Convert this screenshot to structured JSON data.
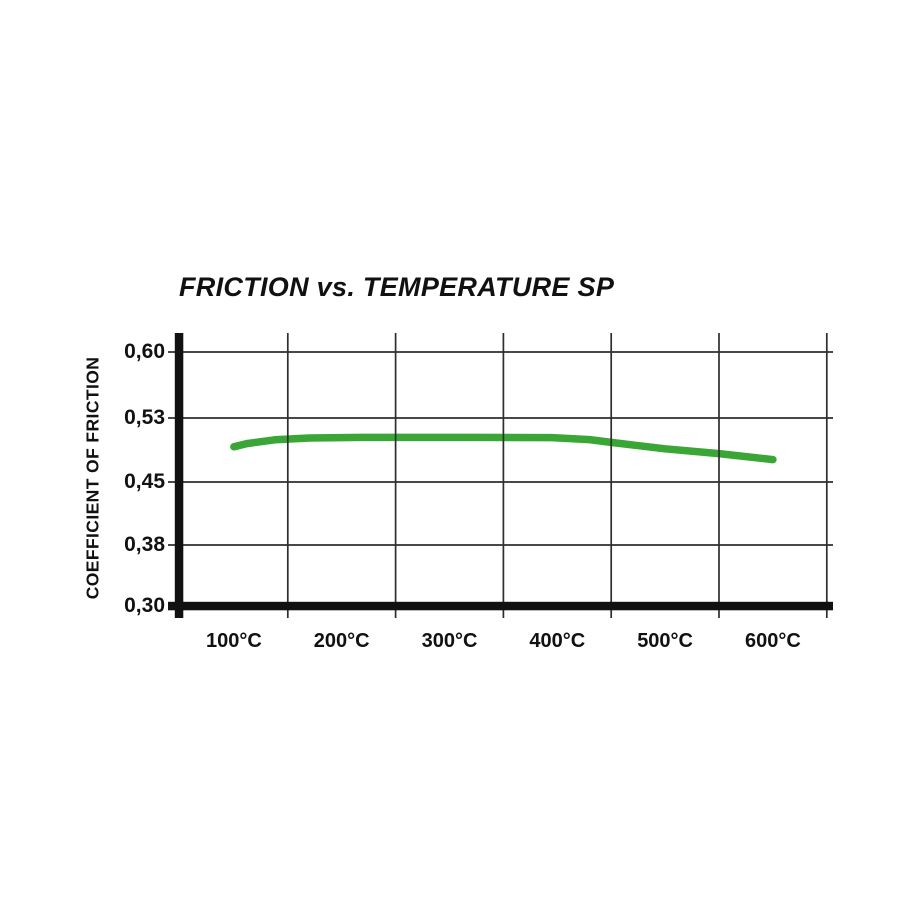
{
  "title": "FRICTION vs. TEMPERATURE SP",
  "chart_data": {
    "type": "line",
    "title": "FRICTION vs. TEMPERATURE SP",
    "xlabel": "",
    "ylabel": "COEFFICIENT OF FRICTION",
    "x_tick_labels": [
      "100°C",
      "200°C",
      "300°C",
      "400°C",
      "500°C",
      "600°C"
    ],
    "x_tick_values": [
      100,
      200,
      300,
      400,
      500,
      600
    ],
    "y_tick_labels": [
      "0,60",
      "0,53",
      "0,45",
      "0,38",
      "0,30"
    ],
    "y_tick_values": [
      0.6,
      0.53,
      0.45,
      0.38,
      0.3
    ],
    "xlim": [
      50,
      650
    ],
    "ylim": [
      0.3,
      0.62
    ],
    "grid": true,
    "legend_position": "none",
    "series": [
      {
        "name": "SP",
        "color": "#3aa635",
        "x": [
          100,
          200,
          300,
          400,
          500,
          600
        ],
        "y": [
          0.49,
          0.51,
          0.51,
          0.51,
          0.49,
          0.48
        ],
        "curve_points": [
          [
            100,
            0.494
          ],
          [
            112,
            0.498
          ],
          [
            138,
            0.5027
          ],
          [
            170,
            0.505
          ],
          [
            220,
            0.5057
          ],
          [
            320,
            0.5057
          ],
          [
            395,
            0.5055
          ],
          [
            430,
            0.503
          ],
          [
            450,
            0.4995
          ],
          [
            500,
            0.4915
          ],
          [
            550,
            0.4855
          ],
          [
            600,
            0.478
          ]
        ]
      }
    ]
  },
  "colors": {
    "background": "#ffffff",
    "axis": "#111111",
    "grid": "#2e2e2e",
    "text": "#111111",
    "line": "#3aa635"
  }
}
